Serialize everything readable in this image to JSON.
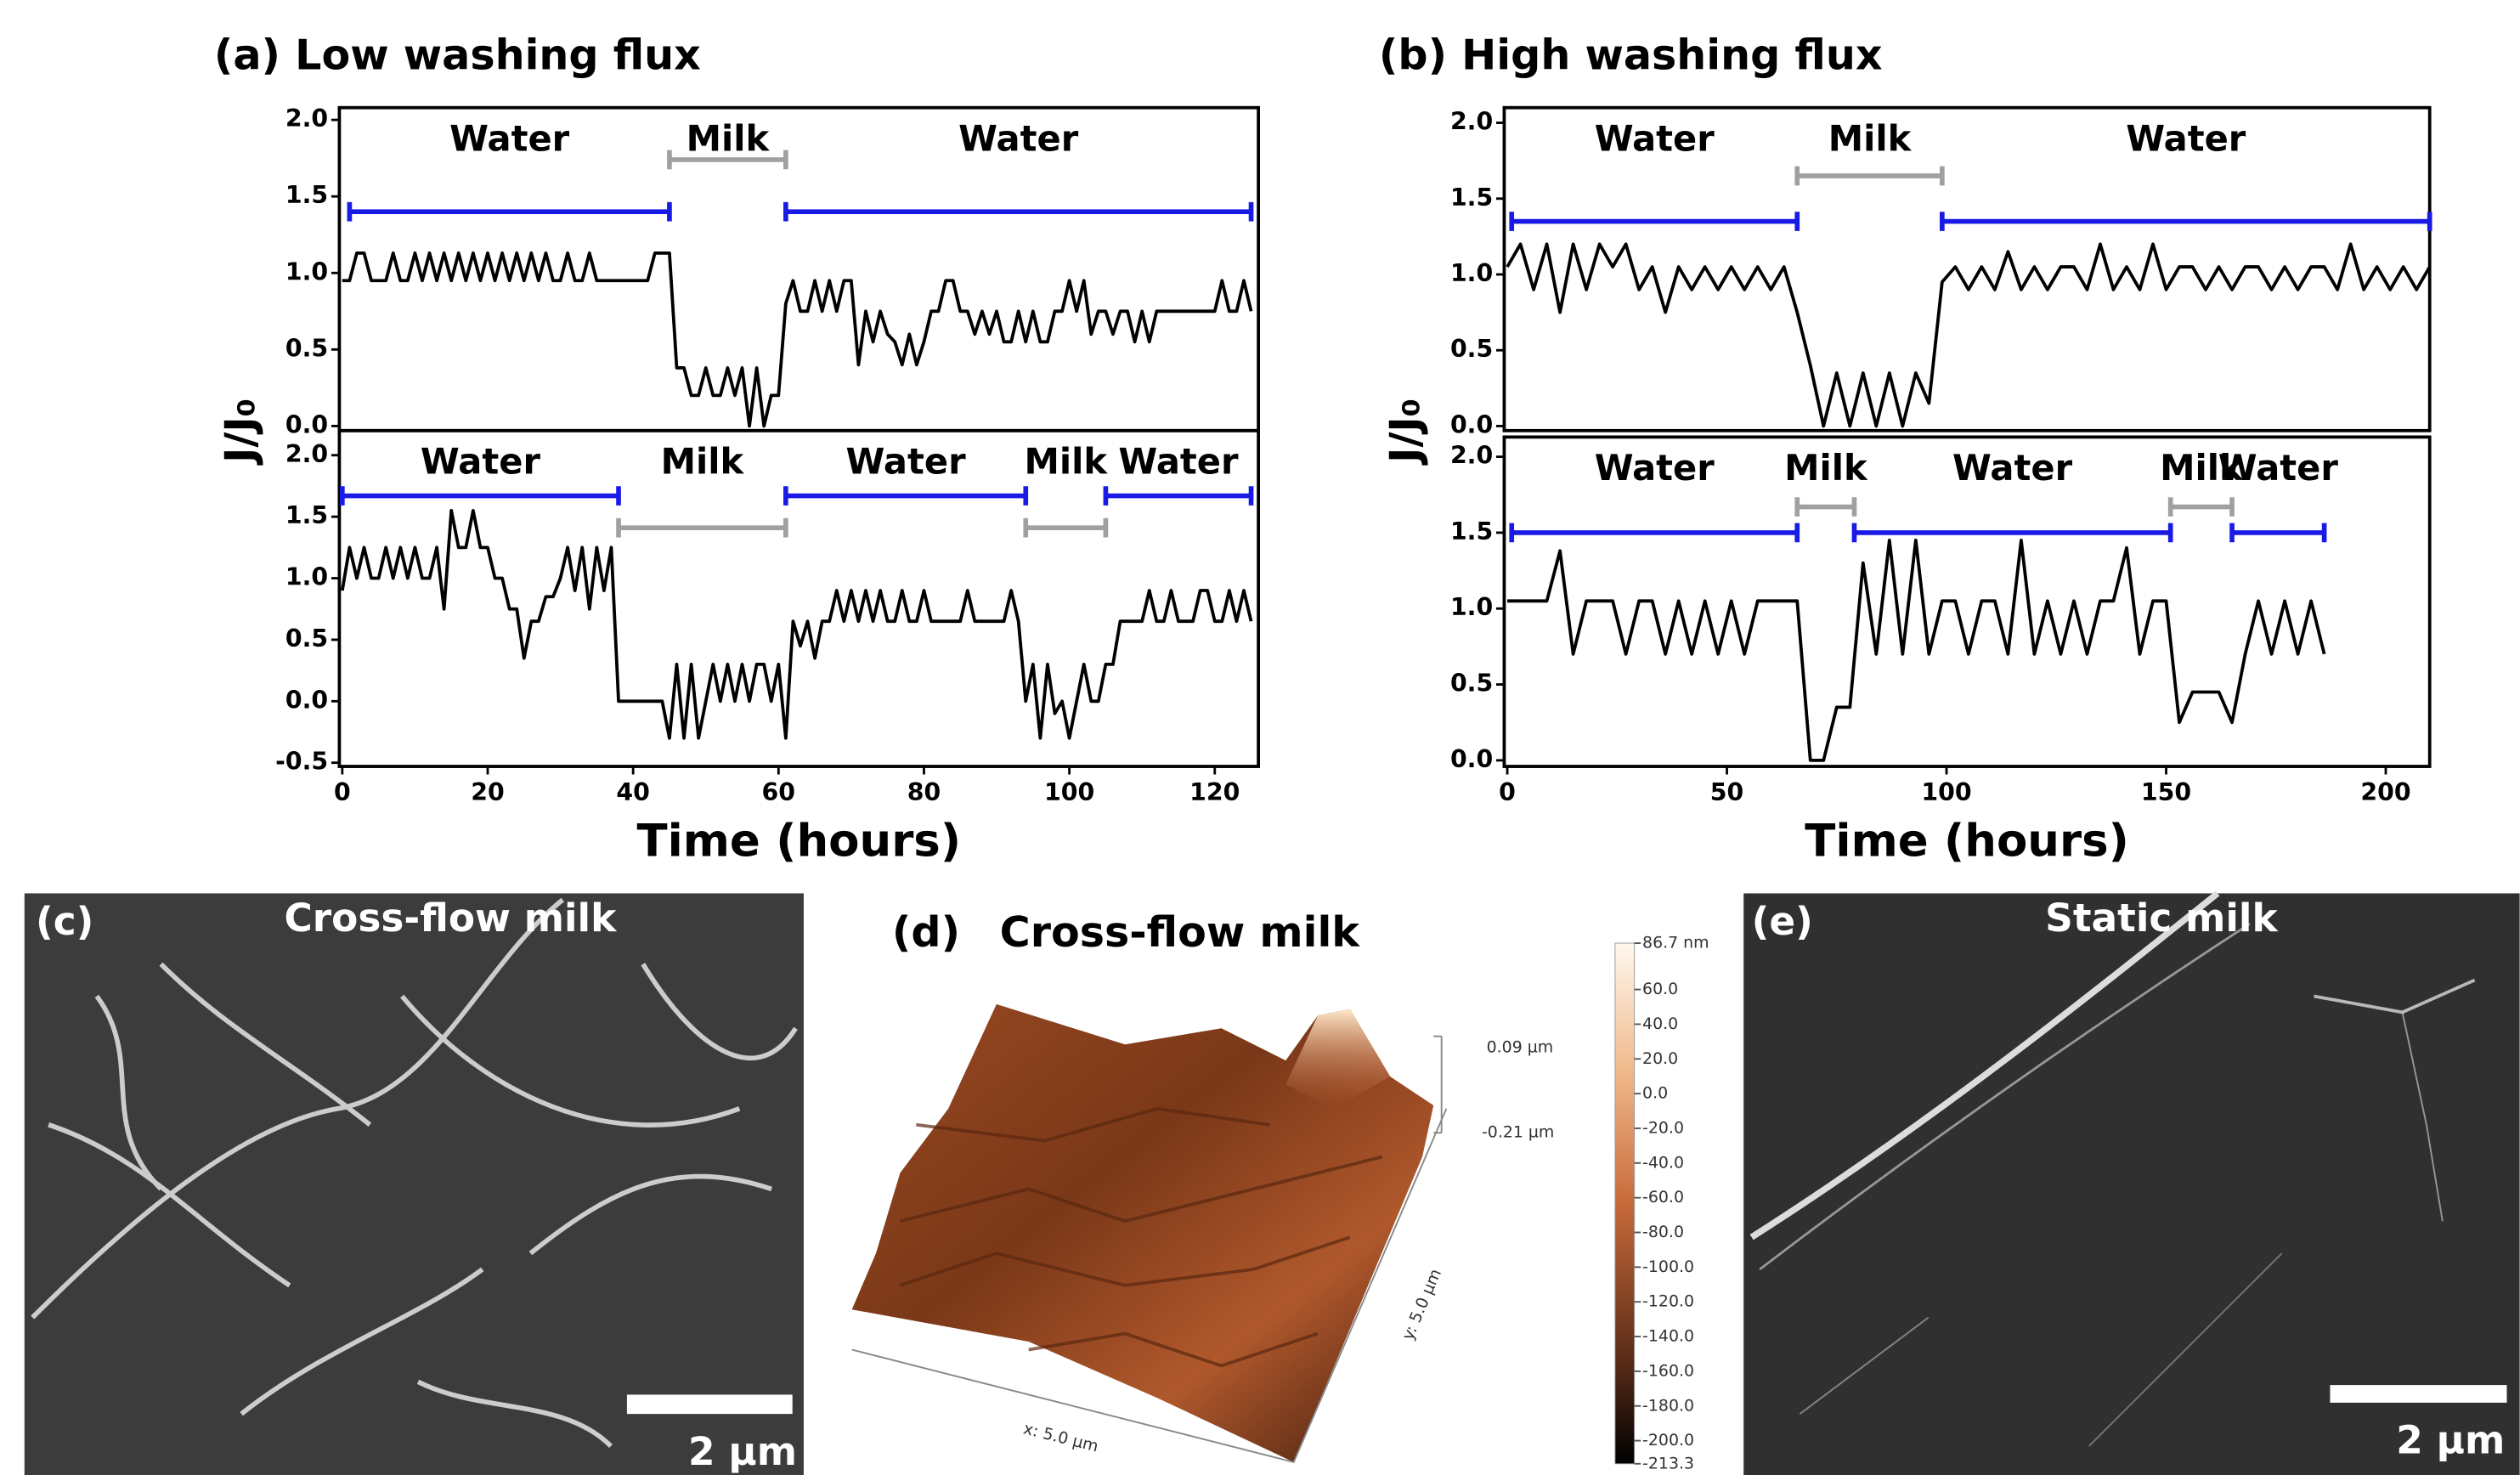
{
  "chart_data": [
    {
      "type": "line",
      "title": "(a) Low washing flux",
      "ylabel": "J/J₀",
      "color": "#000000",
      "xlim": [
        -0.4,
        126
      ],
      "ylim": [
        -0.03,
        2.08
      ],
      "yticks": [
        {
          "value": 0,
          "label": "0.0"
        },
        {
          "value": 0.5,
          "label": "0.5"
        },
        {
          "value": 1,
          "label": "1.0"
        },
        {
          "value": 1.5,
          "label": "1.5"
        },
        {
          "value": 2,
          "label": "2.0"
        }
      ],
      "x": [
        0,
        1,
        2,
        3,
        4,
        5,
        6,
        7,
        8,
        9,
        10,
        11,
        12,
        13,
        14,
        15,
        16,
        17,
        18,
        19,
        20,
        21,
        22,
        23,
        24,
        25,
        26,
        27,
        28,
        29,
        30,
        31,
        32,
        33,
        34,
        35,
        36,
        37,
        38,
        39,
        40,
        41,
        42,
        43,
        44,
        45,
        46,
        47,
        48,
        49,
        50,
        51,
        52,
        53,
        54,
        55,
        56,
        57,
        58,
        59,
        60,
        61,
        62,
        63,
        64,
        65,
        66,
        67,
        68,
        69,
        70,
        71,
        72,
        73,
        74,
        75,
        76,
        77,
        78,
        79,
        80,
        81,
        82,
        83,
        84,
        85,
        86,
        87,
        88,
        89,
        90,
        91,
        92,
        93,
        94,
        95,
        96,
        97,
        98,
        99,
        100,
        101,
        102,
        103,
        104,
        105,
        106,
        107,
        108,
        109,
        110,
        111,
        112,
        113,
        114,
        115,
        116,
        117,
        118,
        119,
        120,
        121,
        122,
        123,
        124,
        125
      ],
      "values": [
        0.95,
        0.95,
        1.13,
        1.13,
        0.95,
        0.95,
        0.95,
        1.13,
        0.95,
        0.95,
        1.13,
        0.95,
        1.13,
        0.95,
        1.13,
        0.95,
        1.13,
        0.95,
        1.13,
        0.95,
        1.13,
        0.95,
        1.13,
        0.95,
        1.13,
        0.95,
        1.13,
        0.95,
        1.13,
        0.95,
        0.95,
        1.13,
        0.95,
        0.95,
        1.13,
        0.95,
        0.95,
        0.95,
        0.95,
        0.95,
        0.95,
        0.95,
        0.95,
        1.13,
        1.13,
        1.13,
        0.38,
        0.38,
        0.2,
        0.2,
        0.38,
        0.2,
        0.2,
        0.38,
        0.2,
        0.38,
        0.0,
        0.38,
        0.0,
        0.2,
        0.2,
        0.8,
        0.95,
        0.75,
        0.75,
        0.95,
        0.75,
        0.95,
        0.75,
        0.95,
        0.95,
        0.4,
        0.75,
        0.55,
        0.75,
        0.6,
        0.55,
        0.4,
        0.6,
        0.4,
        0.55,
        0.75,
        0.75,
        0.95,
        0.95,
        0.75,
        0.75,
        0.6,
        0.75,
        0.6,
        0.75,
        0.55,
        0.55,
        0.75,
        0.55,
        0.75,
        0.55,
        0.55,
        0.75,
        0.75,
        0.95,
        0.75,
        0.95,
        0.6,
        0.75,
        0.75,
        0.6,
        0.75,
        0.75,
        0.55,
        0.75,
        0.55,
        0.75,
        0.75,
        0.75,
        0.75,
        0.75,
        0.75,
        0.75,
        0.75,
        0.75,
        0.95,
        0.75,
        0.75,
        0.95,
        0.75
      ],
      "annotations": [
        {
          "text": "Water",
          "start": 1,
          "end": 45,
          "y": 1.4,
          "color": "#1a1ae6"
        },
        {
          "text": "Milk",
          "start": 45,
          "end": 61,
          "y": 1.74,
          "color": "#a0a0a0"
        },
        {
          "text": "Water",
          "start": 61,
          "end": 125,
          "y": 1.4,
          "color": "#1a1ae6"
        }
      ]
    },
    {
      "type": "line",
      "xlabel": "Time (hours)",
      "color": "#000000",
      "xlim": [
        -0.4,
        126
      ],
      "ylim": [
        -0.53,
        2.2
      ],
      "xticks": [
        0,
        20,
        40,
        60,
        80,
        100,
        120
      ],
      "yticks": [
        {
          "value": -0.5,
          "label": "-0.5"
        },
        {
          "value": 0,
          "label": "0.0"
        },
        {
          "value": 0.5,
          "label": "0.5"
        },
        {
          "value": 1,
          "label": "1.0"
        },
        {
          "value": 1.5,
          "label": "1.5"
        },
        {
          "value": 2,
          "label": "2.0"
        }
      ],
      "x": [
        0,
        1,
        2,
        3,
        4,
        5,
        6,
        7,
        8,
        9,
        10,
        11,
        12,
        13,
        14,
        15,
        16,
        17,
        18,
        19,
        20,
        21,
        22,
        23,
        24,
        25,
        26,
        27,
        28,
        29,
        30,
        31,
        32,
        33,
        34,
        35,
        36,
        37,
        38,
        39,
        40,
        41,
        42,
        43,
        44,
        45,
        46,
        47,
        48,
        49,
        50,
        51,
        52,
        53,
        54,
        55,
        56,
        57,
        58,
        59,
        60,
        61,
        62,
        63,
        64,
        65,
        66,
        67,
        68,
        69,
        70,
        71,
        72,
        73,
        74,
        75,
        76,
        77,
        78,
        79,
        80,
        81,
        82,
        83,
        84,
        85,
        86,
        87,
        88,
        89,
        90,
        91,
        92,
        93,
        94,
        95,
        96,
        97,
        98,
        99,
        100,
        101,
        102,
        103,
        104,
        105,
        106,
        107,
        108,
        109,
        110,
        111,
        112,
        113,
        114,
        115,
        116,
        117,
        118,
        119,
        120,
        121,
        122,
        123,
        124,
        125
      ],
      "values": [
        0.9,
        1.25,
        1.0,
        1.25,
        1.0,
        1.0,
        1.25,
        1.0,
        1.25,
        1.0,
        1.25,
        1.0,
        1.0,
        1.25,
        0.75,
        1.55,
        1.25,
        1.25,
        1.55,
        1.25,
        1.25,
        1.0,
        1.0,
        0.75,
        0.75,
        0.35,
        0.65,
        0.65,
        0.85,
        0.85,
        1.0,
        1.25,
        0.9,
        1.25,
        0.75,
        1.25,
        0.9,
        1.25,
        0.0,
        0.0,
        0.0,
        0.0,
        0.0,
        0.0,
        0.0,
        -0.3,
        0.3,
        -0.3,
        0.3,
        -0.3,
        0.0,
        0.3,
        0.0,
        0.3,
        0.0,
        0.3,
        0.0,
        0.3,
        0.3,
        0.0,
        0.3,
        -0.3,
        0.65,
        0.45,
        0.65,
        0.35,
        0.65,
        0.65,
        0.9,
        0.65,
        0.9,
        0.65,
        0.9,
        0.65,
        0.9,
        0.65,
        0.65,
        0.9,
        0.65,
        0.65,
        0.9,
        0.65,
        0.65,
        0.65,
        0.65,
        0.65,
        0.9,
        0.65,
        0.65,
        0.65,
        0.65,
        0.65,
        0.9,
        0.65,
        0.0,
        0.3,
        -0.3,
        0.3,
        -0.1,
        0.0,
        -0.3,
        0.0,
        0.3,
        0.0,
        0.0,
        0.3,
        0.3,
        0.65,
        0.65,
        0.65,
        0.65,
        0.9,
        0.65,
        0.65,
        0.9,
        0.65,
        0.65,
        0.65,
        0.9,
        0.9,
        0.65,
        0.65,
        0.9,
        0.65,
        0.9,
        0.65
      ],
      "annotations": [
        {
          "text": "Water",
          "start": 0,
          "end": 38,
          "y": 1.67,
          "color": "#1a1ae6"
        },
        {
          "text": "Milk",
          "start": 38,
          "end": 61,
          "y": 1.41,
          "color": "#a0a0a0"
        },
        {
          "text": "Water",
          "start": 61,
          "end": 94,
          "y": 1.67,
          "color": "#1a1ae6"
        },
        {
          "text": "Milk",
          "start": 94,
          "end": 105,
          "y": 1.41,
          "color": "#a0a0a0"
        },
        {
          "text": "Water",
          "start": 105,
          "end": 125,
          "y": 1.67,
          "color": "#1a1ae6"
        }
      ]
    },
    {
      "type": "line",
      "title": "(b) High washing flux",
      "ylabel": "J/J₀",
      "color": "#000000",
      "xlim": [
        -0.7,
        210
      ],
      "ylim": [
        -0.03,
        2.1
      ],
      "yticks": [
        {
          "value": 0,
          "label": "0.0"
        },
        {
          "value": 0.5,
          "label": "0.5"
        },
        {
          "value": 1,
          "label": "1.0"
        },
        {
          "value": 1.5,
          "label": "1.5"
        },
        {
          "value": 2,
          "label": "2.0"
        }
      ],
      "x": [
        0,
        3,
        6,
        9,
        12,
        15,
        18,
        21,
        24,
        27,
        30,
        33,
        36,
        39,
        42,
        45,
        48,
        51,
        54,
        57,
        60,
        63,
        66,
        69,
        72,
        75,
        78,
        81,
        84,
        87,
        90,
        93,
        96,
        99,
        102,
        105,
        108,
        111,
        114,
        117,
        120,
        123,
        126,
        129,
        132,
        135,
        138,
        141,
        144,
        147,
        150,
        153,
        156,
        159,
        162,
        165,
        168,
        171,
        174,
        177,
        180,
        183,
        186,
        189,
        192,
        195,
        198,
        201,
        204,
        207,
        210
      ],
      "values": [
        1.05,
        1.2,
        0.9,
        1.2,
        0.75,
        1.2,
        0.9,
        1.2,
        1.05,
        1.2,
        0.9,
        1.05,
        0.75,
        1.05,
        0.9,
        1.05,
        0.9,
        1.05,
        0.9,
        1.05,
        0.9,
        1.05,
        0.75,
        0.4,
        0.0,
        0.35,
        0.0,
        0.35,
        0.0,
        0.35,
        0.0,
        0.35,
        0.15,
        0.95,
        1.05,
        0.9,
        1.05,
        0.9,
        1.15,
        0.9,
        1.05,
        0.9,
        1.05,
        1.05,
        0.9,
        1.2,
        0.9,
        1.05,
        0.9,
        1.2,
        0.9,
        1.05,
        1.05,
        0.9,
        1.05,
        0.9,
        1.05,
        1.05,
        0.9,
        1.05,
        0.9,
        1.05,
        1.05,
        0.9,
        1.2,
        0.9,
        1.05,
        0.9,
        1.05,
        0.9,
        1.05
      ],
      "annotations": [
        {
          "text": "Water",
          "start": 1,
          "end": 66,
          "y": 1.35,
          "color": "#1a1ae6"
        },
        {
          "text": "Milk",
          "start": 66,
          "end": 99,
          "y": 1.65,
          "color": "#a0a0a0"
        },
        {
          "text": "Water",
          "start": 99,
          "end": 210,
          "y": 1.35,
          "color": "#1a1ae6"
        }
      ]
    },
    {
      "type": "line",
      "xlabel": "Time (hours)",
      "color": "#000000",
      "xlim": [
        -0.7,
        210
      ],
      "ylim": [
        -0.04,
        2.13
      ],
      "xticks": [
        0,
        50,
        100,
        150,
        200
      ],
      "yticks": [
        {
          "value": 0,
          "label": "0.0"
        },
        {
          "value": 0.5,
          "label": "0.5"
        },
        {
          "value": 1,
          "label": "1.0"
        },
        {
          "value": 1.5,
          "label": "1.5"
        },
        {
          "value": 2,
          "label": "2.0"
        }
      ],
      "x": [
        0,
        3,
        6,
        9,
        12,
        15,
        18,
        21,
        24,
        27,
        30,
        33,
        36,
        39,
        42,
        45,
        48,
        51,
        54,
        57,
        60,
        63,
        66,
        69,
        72,
        75,
        78,
        81,
        84,
        87,
        90,
        93,
        96,
        99,
        102,
        105,
        108,
        111,
        114,
        117,
        120,
        123,
        126,
        129,
        132,
        135,
        138,
        141,
        144,
        147,
        150,
        153,
        156,
        159,
        162,
        165,
        168,
        171,
        174,
        177,
        180,
        183,
        186
      ],
      "values": [
        1.05,
        1.05,
        1.05,
        1.05,
        1.38,
        0.7,
        1.05,
        1.05,
        1.05,
        0.7,
        1.05,
        1.05,
        0.7,
        1.05,
        0.7,
        1.05,
        0.7,
        1.05,
        0.7,
        1.05,
        1.05,
        1.05,
        1.05,
        0.0,
        0.0,
        0.35,
        0.35,
        1.3,
        0.7,
        1.45,
        0.7,
        1.45,
        0.7,
        1.05,
        1.05,
        0.7,
        1.05,
        1.05,
        0.7,
        1.45,
        0.7,
        1.05,
        0.7,
        1.05,
        0.7,
        1.05,
        1.05,
        1.4,
        0.7,
        1.05,
        1.05,
        0.25,
        0.45,
        0.45,
        0.45,
        0.25,
        0.7,
        1.05,
        0.7,
        1.05,
        0.7,
        1.05,
        0.7
      ],
      "annotations": [
        {
          "text": "Water",
          "start": 1,
          "end": 66,
          "y": 1.5,
          "color": "#1a1ae6"
        },
        {
          "text": "Milk",
          "start": 66,
          "end": 79,
          "y": 1.67,
          "color": "#a0a0a0"
        },
        {
          "text": "Water",
          "start": 79,
          "end": 151,
          "y": 1.5,
          "color": "#1a1ae6"
        },
        {
          "text": "Milk",
          "start": 151,
          "end": 165,
          "y": 1.67,
          "color": "#a0a0a0"
        },
        {
          "text": "Water",
          "start": 165,
          "end": 186,
          "y": 1.5,
          "color": "#1a1ae6"
        }
      ]
    }
  ],
  "panels": {
    "c": {
      "label": "(c)",
      "title": "Cross-flow milk",
      "scale_bar": "2 µm"
    },
    "d": {
      "label": "(d)",
      "title": "Cross-flow milk",
      "z_top": "0.09 µm",
      "z_bottom": "-0.21 µm",
      "x_axis": "x: 5.0 µm",
      "y_axis": "y: 5.0 µm",
      "colorbar": {
        "lim": [
          -213.3,
          86.7
        ],
        "ticks": [
          {
            "value": 86.7,
            "label": "86.7 nm"
          },
          {
            "value": 60,
            "label": "60.0"
          },
          {
            "value": 40,
            "label": "40.0"
          },
          {
            "value": 20,
            "label": "20.0"
          },
          {
            "value": 0,
            "label": "0.0"
          },
          {
            "value": -20,
            "label": "-20.0"
          },
          {
            "value": -40,
            "label": "-40.0"
          },
          {
            "value": -60,
            "label": "-60.0"
          },
          {
            "value": -80,
            "label": "-80.0"
          },
          {
            "value": -100,
            "label": "-100.0"
          },
          {
            "value": -120,
            "label": "-120.0"
          },
          {
            "value": -140,
            "label": "-140.0"
          },
          {
            "value": -160,
            "label": "-160.0"
          },
          {
            "value": -180,
            "label": "-180.0"
          },
          {
            "value": -200,
            "label": "-200.0"
          },
          {
            "value": -213.3,
            "label": "-213.3"
          }
        ]
      }
    },
    "e": {
      "label": "(e)",
      "title": "Static milk",
      "scale_bar": "2 µm"
    }
  }
}
